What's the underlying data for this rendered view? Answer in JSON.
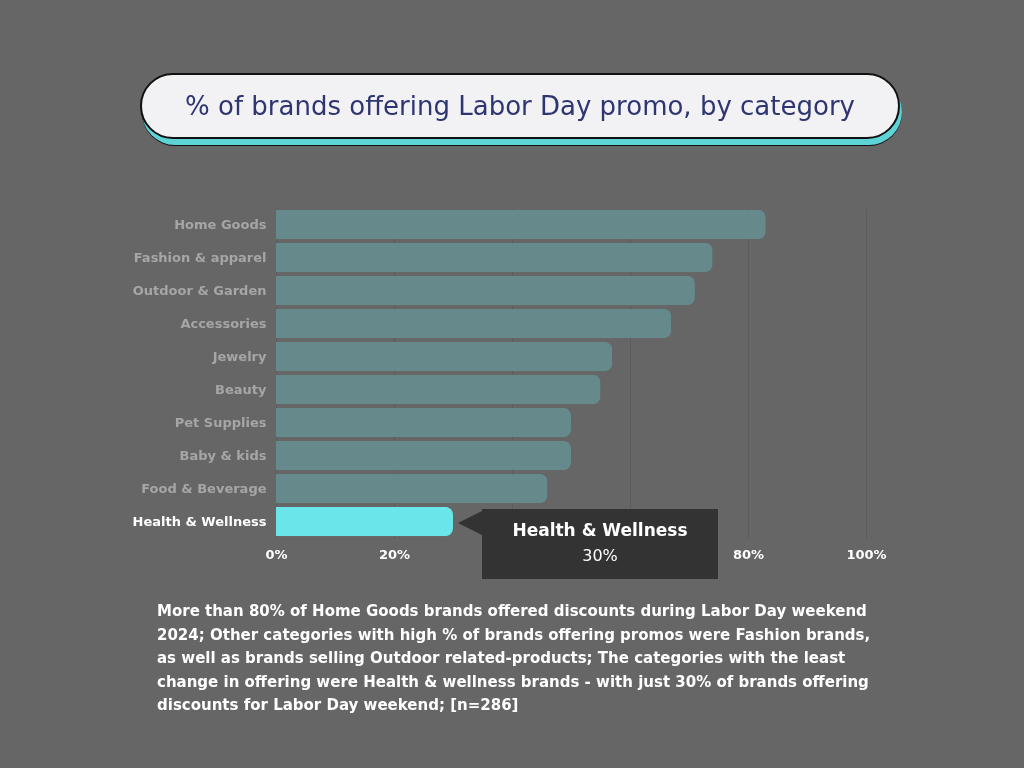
{
  "chart_data": {
    "type": "bar",
    "orientation": "horizontal",
    "title": "% of brands offering Labor Day promo, by category",
    "categories": [
      "Home Goods",
      "Fashion & apparel",
      "Outdoor & Garden",
      "Accessories",
      "Jewelry",
      "Beauty",
      "Pet Supplies",
      "Baby & kids",
      "Food & Beverage",
      "Health & Wellness"
    ],
    "values": [
      83,
      74,
      71,
      67,
      57,
      55,
      50,
      50,
      46,
      30
    ],
    "colors": [
      "#668a8c",
      "#668a8c",
      "#668a8c",
      "#668a8c",
      "#668a8c",
      "#668a8c",
      "#668a8c",
      "#668a8c",
      "#668a8c",
      "#6ae5e9"
    ],
    "xlim": [
      0,
      100
    ],
    "xticks": [
      {
        "value": 0,
        "label": "0%"
      },
      {
        "value": 20,
        "label": "20%"
      },
      {
        "value": 40,
        "label": null
      },
      {
        "value": 60,
        "label": null
      },
      {
        "value": 80,
        "label": "80%"
      },
      {
        "value": 100,
        "label": "100%"
      }
    ],
    "grid": "x",
    "annotations": [
      "Health & Wellness\n30%",
      "More than 80% of Home Goods brands offered discounts during Labor Day weekend 2024; Other categories with high % of brands offering promos were Fashion brands, as well as brands selling Outdoor related-products;  The categories with the least change in offering were Health & wellness brands - with just 30% of brands offering discounts for Labor Day weekend; [n=286]"
    ]
  }
}
